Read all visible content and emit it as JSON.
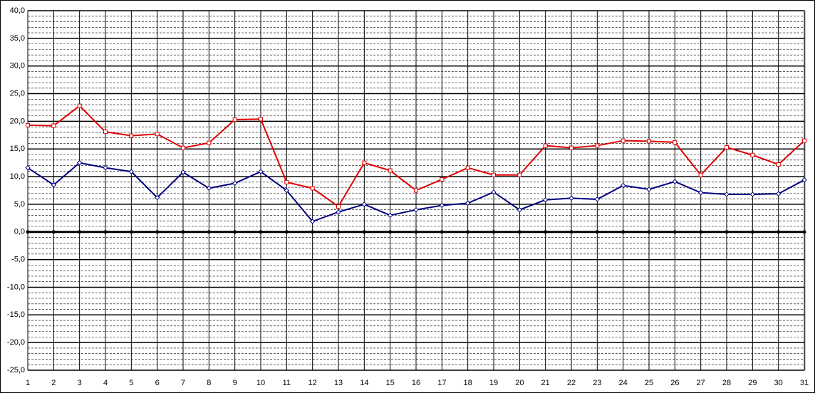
{
  "chart_data": {
    "type": "line",
    "x": [
      1,
      2,
      3,
      4,
      5,
      6,
      7,
      8,
      9,
      10,
      11,
      12,
      13,
      14,
      15,
      16,
      17,
      18,
      19,
      20,
      21,
      22,
      23,
      24,
      25,
      26,
      27,
      28,
      29,
      30,
      31
    ],
    "xlim": [
      1,
      31
    ],
    "xticks": [
      1,
      2,
      3,
      4,
      5,
      6,
      7,
      8,
      9,
      10,
      11,
      12,
      13,
      14,
      15,
      16,
      17,
      18,
      19,
      20,
      21,
      22,
      23,
      24,
      25,
      26,
      27,
      28,
      29,
      30,
      31
    ],
    "ylim": [
      -25,
      40
    ],
    "yticks": [
      {
        "value": -25,
        "label": "-25,0"
      },
      {
        "value": -20,
        "label": "-20,0"
      },
      {
        "value": -15,
        "label": "-15,0"
      },
      {
        "value": -10,
        "label": "-10,0"
      },
      {
        "value": -5,
        "label": "-5,0"
      },
      {
        "value": 0,
        "label": "0,0"
      },
      {
        "value": 5,
        "label": "5,0"
      },
      {
        "value": 10,
        "label": "10,0"
      },
      {
        "value": 15,
        "label": "15,0"
      },
      {
        "value": 20,
        "label": "20,0"
      },
      {
        "value": 25,
        "label": "25,0"
      },
      {
        "value": 30,
        "label": "30,0"
      },
      {
        "value": 35,
        "label": "35,0"
      },
      {
        "value": 40,
        "label": "40,0"
      }
    ],
    "grid": true,
    "series": [
      {
        "color": "#e00000",
        "values": [
          19.3,
          19.2,
          22.8,
          18.1,
          17.4,
          17.7,
          15.2,
          16.1,
          20.3,
          20.4,
          9.0,
          7.9,
          4.6,
          12.5,
          11.1,
          7.5,
          9.5,
          11.6,
          10.3,
          10.3,
          15.6,
          15.2,
          15.6,
          16.5,
          16.4,
          16.2,
          10.3,
          15.3,
          13.9,
          12.2,
          16.5
        ]
      },
      {
        "color": "#000080",
        "values": [
          11.6,
          8.5,
          12.5,
          11.6,
          10.9,
          6.2,
          10.8,
          7.9,
          8.8,
          10.9,
          7.5,
          1.9,
          3.6,
          5.0,
          3.0,
          4.0,
          4.8,
          5.2,
          7.2,
          4.0,
          5.8,
          6.1,
          5.9,
          8.4,
          7.7,
          9.1,
          7.1,
          6.8,
          6.8,
          6.9,
          9.4
        ]
      },
      {
        "color": "#000000",
        "values": [
          0,
          0,
          0,
          0,
          0,
          0,
          0,
          0,
          0,
          0,
          0,
          0,
          0,
          0,
          0,
          0,
          0,
          0,
          0,
          0,
          0,
          0,
          0,
          0,
          0,
          0,
          0,
          0,
          0,
          0,
          0
        ]
      }
    ]
  }
}
